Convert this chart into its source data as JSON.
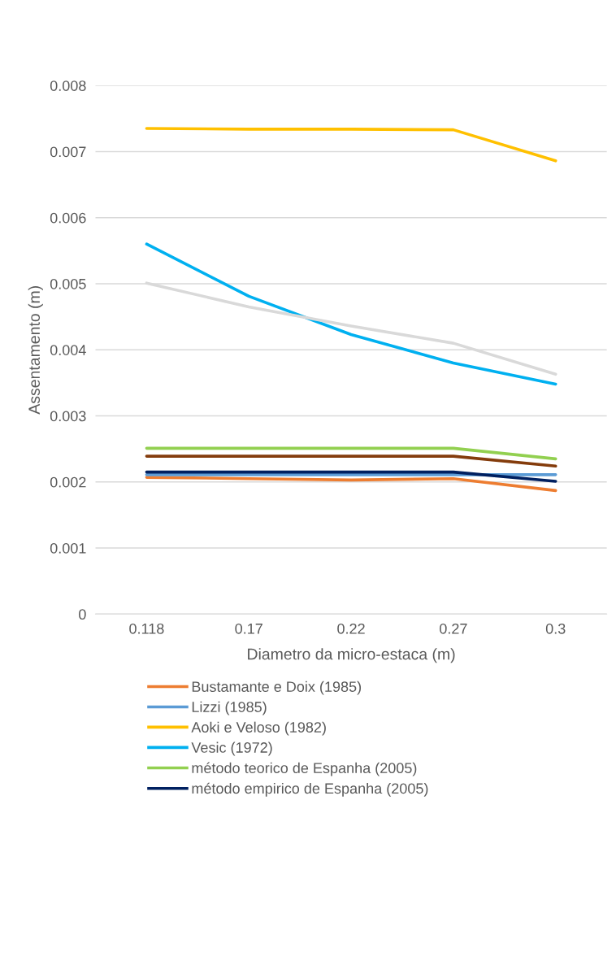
{
  "chart_data": {
    "type": "line",
    "xlabel": "Diametro da micro-estaca (m)",
    "ylabel": "Assentamento (m)",
    "categories": [
      "0.118",
      "0.17",
      "0.22",
      "0.27",
      "0.3"
    ],
    "ylim": [
      0,
      0.008
    ],
    "yticks": [
      0,
      0.001,
      0.002,
      0.003,
      0.004,
      0.005,
      0.006,
      0.007,
      0.008
    ],
    "grid": "y",
    "legend": "bottom",
    "marker": "none",
    "line_style": "solid",
    "series": [
      {
        "name": "Bustamante e Doix (1985)",
        "color": "#ed7d31",
        "values": [
          0.00207,
          0.00205,
          0.00203,
          0.00205,
          0.00187
        ]
      },
      {
        "name": "Lizzi (1985)",
        "color": "#5b9bd5",
        "values": [
          0.00211,
          0.00211,
          0.00211,
          0.00211,
          0.00211
        ]
      },
      {
        "name": "Aoki e Veloso (1982)",
        "color": "#ffc000",
        "values": [
          0.00735,
          0.00734,
          0.00734,
          0.00733,
          0.00686
        ]
      },
      {
        "name": "Vesic (1972)",
        "color": "#00b0f0",
        "values": [
          0.0056,
          0.00481,
          0.00423,
          0.0038,
          0.00348
        ]
      },
      {
        "name": "método teorico de Espanha (2005)",
        "color": "#92d050",
        "values": [
          0.00251,
          0.00251,
          0.00251,
          0.00251,
          0.00235
        ]
      },
      {
        "name": "método empirico de Espanha (2005)",
        "color": "#002060",
        "values": [
          0.00215,
          0.00215,
          0.00215,
          0.00215,
          0.00201
        ]
      },
      {
        "color": "#d9d9d9",
        "values": [
          0.00501,
          0.00465,
          0.00436,
          0.0041,
          0.00363
        ]
      },
      {
        "color": "#843c0c",
        "values": [
          0.00239,
          0.00239,
          0.00239,
          0.00239,
          0.00224
        ]
      }
    ]
  }
}
